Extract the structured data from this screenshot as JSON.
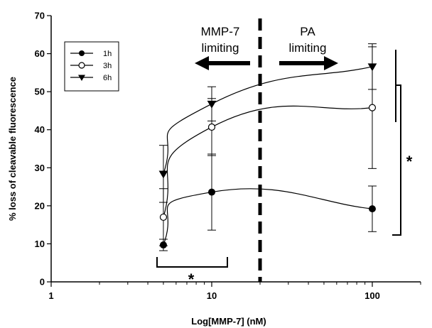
{
  "chart_data": {
    "type": "line",
    "xlabel": "Log[MMP-7] (nM)",
    "ylabel": "% loss of cleavable fluorescence",
    "x_scale": "log",
    "xlim": [
      1,
      200
    ],
    "ylim": [
      0,
      70
    ],
    "x_ticks": [
      1,
      10,
      100
    ],
    "x_tick_labels": [
      "1",
      "10",
      "100"
    ],
    "y_ticks": [
      0,
      10,
      20,
      30,
      40,
      50,
      60,
      70
    ],
    "y_tick_labels": [
      "0",
      "10",
      "20",
      "30",
      "40",
      "50",
      "60",
      "70"
    ],
    "grid": false,
    "legend_position": "top-left",
    "series": [
      {
        "name": "1h",
        "marker": "filled-circle",
        "x": [
          5,
          10,
          100
        ],
        "y": [
          9.7,
          23.6,
          19.2
        ],
        "err_low": [
          1.5,
          10.0,
          6.0
        ],
        "err_high": [
          1.5,
          10.0,
          6.0
        ]
      },
      {
        "name": "3h",
        "marker": "open-circle",
        "x": [
          5,
          10,
          100
        ],
        "y": [
          17.0,
          40.7,
          45.8
        ],
        "err_low": [
          7.5,
          7.5,
          16.0
        ],
        "err_high": [
          7.5,
          7.5,
          16.0
        ]
      },
      {
        "name": "6h",
        "marker": "filled-triangle-down",
        "x": [
          5,
          10,
          100
        ],
        "y": [
          28.4,
          46.8,
          56.6
        ],
        "err_low": [
          7.5,
          4.5,
          6.0
        ],
        "err_high": [
          7.5,
          4.5,
          6.0
        ]
      }
    ],
    "divider_x": 20,
    "annotations": {
      "left_text": [
        "MMP-7",
        "limiting"
      ],
      "right_text": [
        "PA",
        "limiting"
      ],
      "star": "*"
    }
  }
}
